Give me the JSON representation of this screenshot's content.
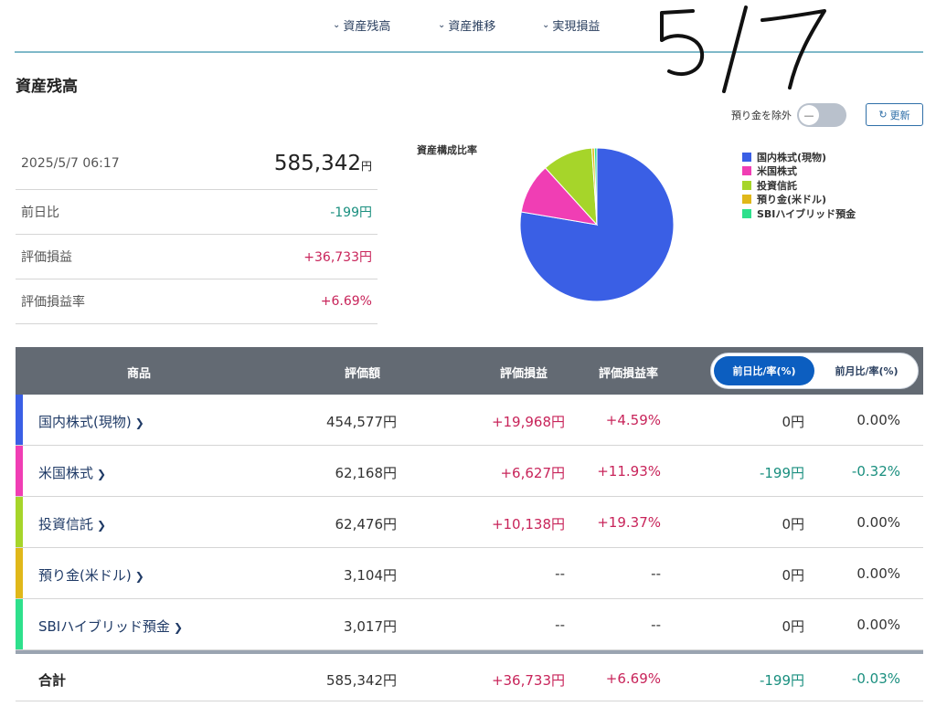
{
  "nav": {
    "items": [
      {
        "label": "資産残高"
      },
      {
        "label": "資産推移"
      },
      {
        "label": "実現損益"
      }
    ]
  },
  "handwritten_note": "5/7",
  "page_title": "資産残高",
  "toggle": {
    "label": "預り金を除外",
    "state": "off"
  },
  "refresh": {
    "label": "更新"
  },
  "summary": {
    "datetime": "2025/5/7 06:17",
    "total": "585,342",
    "total_unit": "円",
    "rows": [
      {
        "label": "前日比",
        "value": "-199円",
        "tone": "neg"
      },
      {
        "label": "評価損益",
        "value": "+36,733円",
        "tone": "pos"
      },
      {
        "label": "評価損益率",
        "value": "+6.69%",
        "tone": "pos"
      }
    ]
  },
  "pie": {
    "title": "資産構成比率",
    "slices": [
      {
        "label": "国内株式(現物)",
        "value": 454577,
        "color": "#3a5fe5"
      },
      {
        "label": "米国株式",
        "value": 62168,
        "color": "#f03eb4"
      },
      {
        "label": "投資信託",
        "value": 62476,
        "color": "#a6d52a"
      },
      {
        "label": "預り金(米ドル)",
        "value": 3104,
        "color": "#e0b81a"
      },
      {
        "label": "SBIハイブリッド預金",
        "value": 3017,
        "color": "#2ee08c"
      }
    ]
  },
  "table": {
    "headers": {
      "product": "商品",
      "valuation": "評価額",
      "pnl": "評価損益",
      "pnl_rate": "評価損益率"
    },
    "segment": {
      "active": "前日比/率(%)",
      "inactive": "前月比/率(%)"
    },
    "rows": [
      {
        "name": "国内株式(現物)",
        "valuation": "454,577円",
        "pnl": "+19,968円",
        "pnl_rate": "+4.59%",
        "diff": "0円",
        "diff_rate": "0.00%",
        "pnl_tone": "pos",
        "diff_tone": "plain",
        "color": "#3a5fe5"
      },
      {
        "name": "米国株式",
        "valuation": "62,168円",
        "pnl": "+6,627円",
        "pnl_rate": "+11.93%",
        "diff": "-199円",
        "diff_rate": "-0.32%",
        "pnl_tone": "pos",
        "diff_tone": "neg",
        "color": "#f03eb4"
      },
      {
        "name": "投資信託",
        "valuation": "62,476円",
        "pnl": "+10,138円",
        "pnl_rate": "+19.37%",
        "diff": "0円",
        "diff_rate": "0.00%",
        "pnl_tone": "pos",
        "diff_tone": "plain",
        "color": "#a6d52a"
      },
      {
        "name": "預り金(米ドル)",
        "valuation": "3,104円",
        "pnl": "--",
        "pnl_rate": "--",
        "diff": "0円",
        "diff_rate": "0.00%",
        "pnl_tone": "plain",
        "diff_tone": "plain",
        "color": "#e0b81a"
      },
      {
        "name": "SBIハイブリッド預金",
        "valuation": "3,017円",
        "pnl": "--",
        "pnl_rate": "--",
        "diff": "0円",
        "diff_rate": "0.00%",
        "pnl_tone": "plain",
        "diff_tone": "plain",
        "color": "#2ee08c"
      }
    ],
    "total": {
      "name": "合計",
      "valuation": "585,342円",
      "pnl": "+36,733円",
      "pnl_rate": "+6.69%",
      "diff": "-199円",
      "diff_rate": "-0.03%"
    }
  }
}
